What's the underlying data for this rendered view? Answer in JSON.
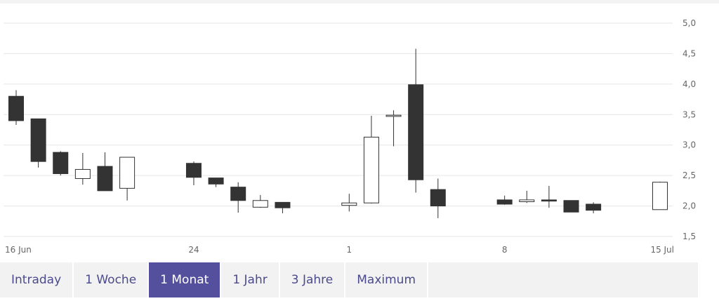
{
  "chart_data": {
    "type": "candlestick",
    "title": "",
    "xlabel": "",
    "ylabel": "",
    "ylim": [
      1.5,
      5.0
    ],
    "yticks": [
      "1,5",
      "2,0",
      "2,5",
      "3,0",
      "3,5",
      "4,0",
      "4,5",
      "5,0"
    ],
    "ytick_values": [
      1.5,
      2.0,
      2.5,
      3.0,
      3.5,
      4.0,
      4.5,
      5.0
    ],
    "grid": true,
    "xtick_labels": [
      {
        "label": "16 Jun",
        "date": "2024-06-16"
      },
      {
        "label": "24",
        "date": "2024-06-24"
      },
      {
        "label": "1",
        "date": "2024-07-01"
      },
      {
        "label": "8",
        "date": "2024-07-08"
      },
      {
        "label": "15 Jul",
        "date": "2024-07-15"
      }
    ],
    "candles": [
      {
        "date": "2024-06-16",
        "open": 3.8,
        "high": 3.9,
        "low": 3.33,
        "close": 3.4
      },
      {
        "date": "2024-06-17",
        "open": 3.43,
        "high": 3.43,
        "low": 2.63,
        "close": 2.73
      },
      {
        "date": "2024-06-18",
        "open": 2.88,
        "high": 2.9,
        "low": 2.5,
        "close": 2.53
      },
      {
        "date": "2024-06-19",
        "open": 2.45,
        "high": 2.87,
        "low": 2.35,
        "close": 2.6
      },
      {
        "date": "2024-06-20",
        "open": 2.65,
        "high": 2.88,
        "low": 2.25,
        "close": 2.25
      },
      {
        "date": "2024-06-21",
        "open": 2.29,
        "high": 2.8,
        "low": 2.09,
        "close": 2.8
      },
      {
        "date": "2024-06-24",
        "open": 2.7,
        "high": 2.73,
        "low": 2.34,
        "close": 2.47
      },
      {
        "date": "2024-06-25",
        "open": 2.46,
        "high": 2.46,
        "low": 2.31,
        "close": 2.36
      },
      {
        "date": "2024-06-26",
        "open": 2.31,
        "high": 2.39,
        "low": 1.89,
        "close": 2.09
      },
      {
        "date": "2024-06-27",
        "open": 1.98,
        "high": 2.18,
        "low": 1.97,
        "close": 2.09
      },
      {
        "date": "2024-06-28",
        "open": 2.06,
        "high": 2.06,
        "low": 1.88,
        "close": 1.97
      },
      {
        "date": "2024-07-01",
        "open": 2.01,
        "high": 2.2,
        "low": 1.91,
        "close": 2.05
      },
      {
        "date": "2024-07-02",
        "open": 2.05,
        "high": 3.48,
        "low": 2.04,
        "close": 3.13
      },
      {
        "date": "2024-07-03",
        "open": 3.47,
        "high": 3.57,
        "low": 2.98,
        "close": 3.49
      },
      {
        "date": "2024-07-04",
        "open": 3.99,
        "high": 4.58,
        "low": 2.22,
        "close": 2.43
      },
      {
        "date": "2024-07-05",
        "open": 2.27,
        "high": 2.45,
        "low": 1.8,
        "close": 2.0
      },
      {
        "date": "2024-07-08",
        "open": 2.1,
        "high": 2.17,
        "low": 2.02,
        "close": 2.03
      },
      {
        "date": "2024-07-09",
        "open": 2.07,
        "high": 2.25,
        "low": 2.05,
        "close": 2.1
      },
      {
        "date": "2024-07-10",
        "open": 2.1,
        "high": 2.33,
        "low": 1.97,
        "close": 2.08
      },
      {
        "date": "2024-07-11",
        "open": 2.09,
        "high": 2.09,
        "low": 1.9,
        "close": 1.9
      },
      {
        "date": "2024-07-12",
        "open": 2.03,
        "high": 2.06,
        "low": 1.88,
        "close": 1.93
      },
      {
        "date": "2024-07-15",
        "open": 1.94,
        "high": 2.4,
        "low": 1.94,
        "close": 2.39
      }
    ],
    "colors": {
      "up": "#ffffff",
      "down": "#333333",
      "wick": "#333333",
      "grid": "#e6e6e6",
      "axis_text": "#666666"
    }
  },
  "range_tabs": [
    {
      "label": "Intraday",
      "active": false
    },
    {
      "label": "1 Woche",
      "active": false
    },
    {
      "label": "1 Monat",
      "active": true
    },
    {
      "label": "1 Jahr",
      "active": false
    },
    {
      "label": "3 Jahre",
      "active": false
    },
    {
      "label": "Maximum",
      "active": false
    }
  ]
}
